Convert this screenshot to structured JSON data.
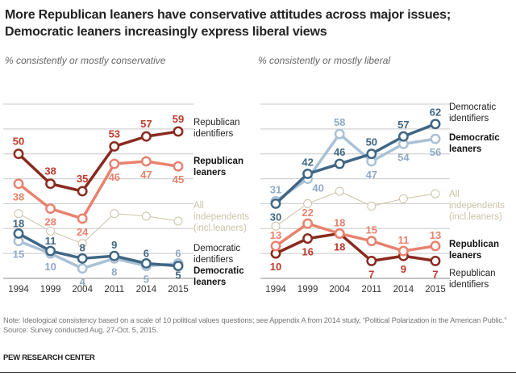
{
  "title_line1": "More Republican leaners have conservative attitudes across major issues;",
  "title_line2": "Democratic leaners increasingly express liberal views",
  "note": "Note: Ideological consistency based on a scale of 10 political values questions; see Appendix A from 2014 study, “Political Polarization in the American Public.”",
  "source": "Source: Survey conducted Aug. 27-Oct. 5, 2015.",
  "brand": "PEW RESEARCH CENTER",
  "colors": {
    "rep_identifiers": "#8a2a1e",
    "rep_leaners": "#e8826f",
    "dem_identifiers": "#3f6685",
    "dem_leaners": "#a9c1d6",
    "independents": "#cbc2a6",
    "rep_label": "#c0392b",
    "dem_label": "#3f6685",
    "dem_leaner_label": "#8fa9c4",
    "grid": "#c8c8c8"
  },
  "chart_data": [
    {
      "type": "line",
      "title": "% consistently or mostly conservative",
      "categories": [
        "1994",
        "1999",
        "2004",
        "2011",
        "2014",
        "2015"
      ],
      "ylim": [
        0,
        70
      ],
      "grid": true,
      "series": [
        {
          "name": "Republican identifiers",
          "label_lines": [
            "Republican",
            "identifiers"
          ],
          "bold": false,
          "values": [
            50,
            38,
            35,
            53,
            57,
            59
          ],
          "labeled": true
        },
        {
          "name": "Republican leaners",
          "label_lines": [
            "Republican",
            "leaners"
          ],
          "bold": true,
          "values": [
            38,
            28,
            24,
            46,
            47,
            45
          ],
          "labeled": true
        },
        {
          "name": "All independents (incl.leaners)",
          "label_lines": [
            "All",
            "independents",
            "(incl.leaners)"
          ],
          "bold": false,
          "values": [
            26,
            19,
            14,
            26,
            25,
            23
          ],
          "labeled": false
        },
        {
          "name": "Democratic identifiers",
          "label_lines": [
            "Democratic",
            "identifiers"
          ],
          "bold": false,
          "values": [
            18,
            11,
            8,
            9,
            6,
            5
          ],
          "labeled": true
        },
        {
          "name": "Democratic leaners",
          "label_lines": [
            "Democratic",
            "leaners"
          ],
          "bold": true,
          "values": [
            15,
            10,
            4,
            8,
            5,
            6
          ],
          "labeled": true
        }
      ]
    },
    {
      "type": "line",
      "title": "% consistently or mostly liberal",
      "categories": [
        "1994",
        "1999",
        "2004",
        "2011",
        "2014",
        "2015"
      ],
      "ylim": [
        0,
        70
      ],
      "grid": true,
      "series": [
        {
          "name": "Democratic identifiers",
          "label_lines": [
            "Democratic",
            "identifiers"
          ],
          "bold": false,
          "values": [
            30,
            42,
            46,
            50,
            57,
            62
          ],
          "labeled": true
        },
        {
          "name": "Democratic leaners",
          "label_lines": [
            "Democratic",
            "leaners"
          ],
          "bold": true,
          "values": [
            31,
            40,
            58,
            47,
            54,
            56
          ],
          "labeled": true
        },
        {
          "name": "All independents (incl.leaners)",
          "label_lines": [
            "All",
            "independents",
            "(incl.leaners)"
          ],
          "bold": false,
          "values": [
            21,
            30,
            35,
            29,
            32,
            34
          ],
          "labeled": false
        },
        {
          "name": "Republican leaners",
          "label_lines": [
            "Republican",
            "leaners"
          ],
          "bold": true,
          "values": [
            13,
            22,
            18,
            15,
            11,
            13
          ],
          "labeled": true
        },
        {
          "name": "Republican identifiers",
          "label_lines": [
            "Republican",
            "identifiers"
          ],
          "bold": false,
          "values": [
            10,
            16,
            18,
            7,
            9,
            7
          ],
          "labeled": true
        }
      ]
    }
  ]
}
